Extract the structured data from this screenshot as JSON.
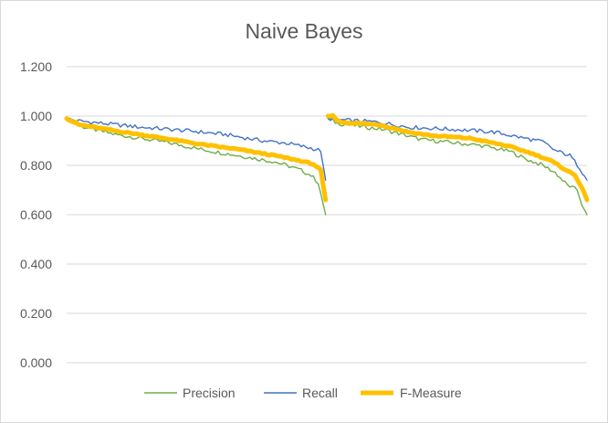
{
  "chart_data": {
    "type": "line",
    "title": "Naive Bayes",
    "xlabel": "",
    "ylabel": "",
    "ylim": [
      0,
      1.2
    ],
    "yticks": [
      "0.000",
      "0.200",
      "0.400",
      "0.600",
      "0.800",
      "1.000",
      "1.200"
    ],
    "n_points": 214,
    "gap_after_index": 106,
    "legend_position": "bottom",
    "series": [
      {
        "name": "Precision",
        "color": "#70ad47",
        "segments": [
          {
            "from": 0,
            "to": 106,
            "knots": [
              [
                0,
                0.99
              ],
              [
                5,
                0.96
              ],
              [
                20,
                0.925
              ],
              [
                40,
                0.895
              ],
              [
                55,
                0.865
              ],
              [
                70,
                0.84
              ],
              [
                85,
                0.815
              ],
              [
                90,
                0.8
              ],
              [
                96,
                0.78
              ],
              [
                100,
                0.76
              ],
              [
                103,
                0.73
              ],
              [
                106,
                0.6
              ]
            ]
          },
          {
            "from": 107,
            "to": 213,
            "knots": [
              [
                107,
                0.99
              ],
              [
                111,
                0.97
              ],
              [
                130,
                0.945
              ],
              [
                145,
                0.905
              ],
              [
                150,
                0.9
              ],
              [
                160,
                0.89
              ],
              [
                170,
                0.88
              ],
              [
                182,
                0.855
              ],
              [
                188,
                0.825
              ],
              [
                195,
                0.8
              ],
              [
                200,
                0.77
              ],
              [
                205,
                0.72
              ],
              [
                209,
                0.7
              ],
              [
                211,
                0.64
              ],
              [
                213,
                0.6
              ]
            ]
          }
        ]
      },
      {
        "name": "Recall",
        "color": "#4472c4",
        "segments": [
          {
            "from": 0,
            "to": 106,
            "knots": [
              [
                0,
                0.99
              ],
              [
                5,
                0.98
              ],
              [
                15,
                0.97
              ],
              [
                30,
                0.955
              ],
              [
                50,
                0.94
              ],
              [
                65,
                0.925
              ],
              [
                80,
                0.9
              ],
              [
                90,
                0.89
              ],
              [
                100,
                0.87
              ],
              [
                104,
                0.86
              ],
              [
                106,
                0.74
              ]
            ]
          },
          {
            "from": 107,
            "to": 213,
            "knots": [
              [
                107,
                0.99
              ],
              [
                111,
                0.985
              ],
              [
                128,
                0.975
              ],
              [
                140,
                0.955
              ],
              [
                160,
                0.945
              ],
              [
                175,
                0.935
              ],
              [
                185,
                0.915
              ],
              [
                195,
                0.895
              ],
              [
                200,
                0.86
              ],
              [
                206,
                0.84
              ],
              [
                210,
                0.79
              ],
              [
                213,
                0.74
              ]
            ]
          }
        ]
      },
      {
        "name": "F-Measure",
        "color": "#ffc000",
        "segments": [
          {
            "from": 0,
            "to": 106,
            "knots": [
              [
                0,
                0.99
              ],
              [
                5,
                0.965
              ],
              [
                20,
                0.94
              ],
              [
                40,
                0.91
              ],
              [
                55,
                0.885
              ],
              [
                70,
                0.865
              ],
              [
                85,
                0.84
              ],
              [
                95,
                0.82
              ],
              [
                101,
                0.805
              ],
              [
                104,
                0.78
              ],
              [
                106,
                0.66
              ]
            ]
          },
          {
            "from": 107,
            "to": 213,
            "knots": [
              [
                107,
                1.0
              ],
              [
                109,
                1.0
              ],
              [
                112,
                0.975
              ],
              [
                128,
                0.965
              ],
              [
                140,
                0.935
              ],
              [
                150,
                0.92
              ],
              [
                165,
                0.91
              ],
              [
                180,
                0.88
              ],
              [
                190,
                0.85
              ],
              [
                198,
                0.82
              ],
              [
                203,
                0.79
              ],
              [
                208,
                0.76
              ],
              [
                211,
                0.71
              ],
              [
                213,
                0.66
              ]
            ]
          }
        ]
      }
    ]
  }
}
